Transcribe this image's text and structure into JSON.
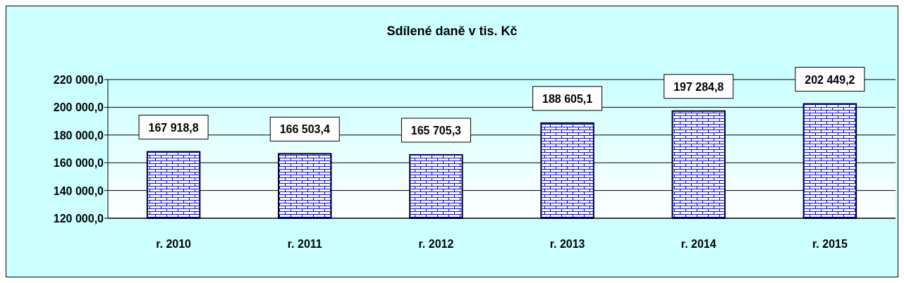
{
  "chart_data": {
    "type": "bar",
    "title": "Sdílené daně v tis. Kč",
    "categories": [
      "r. 2010",
      "r. 2011",
      "r. 2012",
      "r. 2013",
      "r. 2014",
      "r. 2015"
    ],
    "values": [
      167918.8,
      166503.4,
      165705.3,
      188605.1,
      197284.8,
      202449.2
    ],
    "value_labels": [
      "167 918,8",
      "166 503,4",
      "165 705,3",
      "188 605,1",
      "197 284,8",
      "202 449,2"
    ],
    "color": "#0000ff",
    "ylim": [
      120000,
      220000
    ],
    "yticks": [
      {
        "value": 120000,
        "label": "120 000,0"
      },
      {
        "value": 140000,
        "label": "140 000,0"
      },
      {
        "value": 160000,
        "label": "160 000,0"
      },
      {
        "value": 180000,
        "label": "180 000,0"
      },
      {
        "value": 200000,
        "label": "200 000,0"
      },
      {
        "value": 220000,
        "label": "220 000,0"
      }
    ],
    "grid": "y",
    "legend": false
  }
}
